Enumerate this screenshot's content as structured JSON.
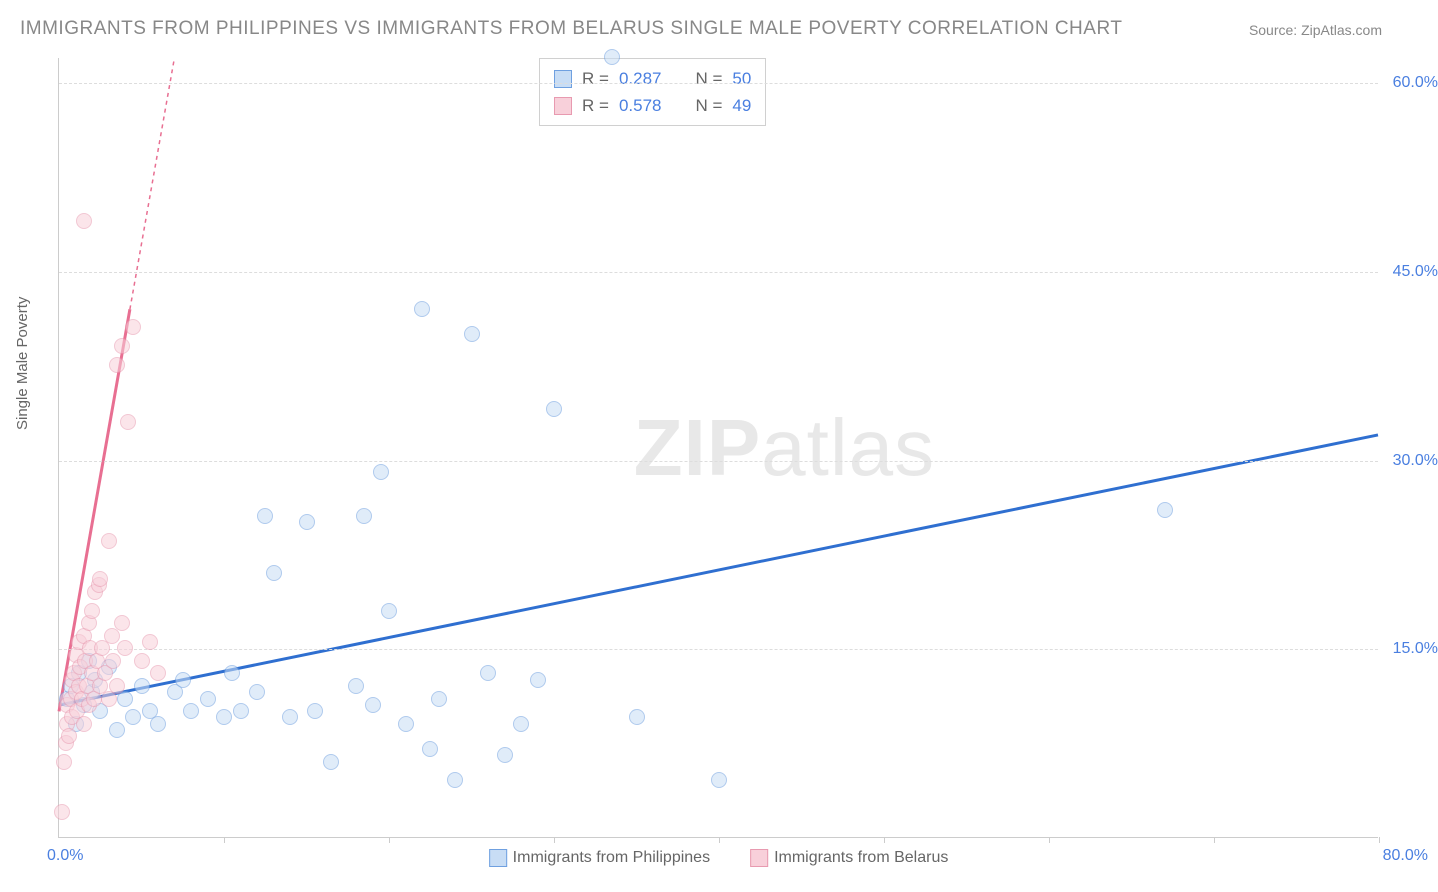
{
  "title": "IMMIGRANTS FROM PHILIPPINES VS IMMIGRANTS FROM BELARUS SINGLE MALE POVERTY CORRELATION CHART",
  "source": "Source: ZipAtlas.com",
  "watermark_a": "ZIP",
  "watermark_b": "atlas",
  "chart": {
    "type": "scatter",
    "ylabel": "Single Male Poverty",
    "xlim": [
      0,
      80
    ],
    "ylim": [
      0,
      62
    ],
    "x_origin_label": "0.0%",
    "x_max_label": "80.0%",
    "y_ticks": [
      15,
      30,
      45,
      60
    ],
    "y_tick_labels": [
      "15.0%",
      "30.0%",
      "45.0%",
      "60.0%"
    ],
    "x_minor_ticks": [
      10,
      20,
      30,
      40,
      50,
      60,
      70,
      80
    ],
    "background_color": "#ffffff",
    "grid_color": "#dddddd",
    "axis_color": "#cccccc",
    "tick_label_color": "#4a7fe0",
    "label_fontsize": 15,
    "title_fontsize": 19,
    "title_color": "#888888",
    "marker_size": 16,
    "series": [
      {
        "name": "Immigrants from Philippines",
        "color_fill": "#c8ddf5",
        "color_stroke": "#6fa0e0",
        "trend_color": "#2f6fd0",
        "trend_width": 3,
        "trend_dash": "none",
        "trend_p1": [
          0,
          10.5
        ],
        "trend_p2": [
          80,
          32
        ],
        "R": "0.287",
        "N": "50",
        "points": [
          [
            0.5,
            11
          ],
          [
            0.7,
            12
          ],
          [
            1,
            9
          ],
          [
            1.2,
            13
          ],
          [
            1.5,
            10.5
          ],
          [
            1.8,
            14
          ],
          [
            2,
            11.5
          ],
          [
            2.2,
            12.5
          ],
          [
            2.5,
            10
          ],
          [
            3,
            13.5
          ],
          [
            3.5,
            8.5
          ],
          [
            4,
            11
          ],
          [
            4.5,
            9.5
          ],
          [
            5,
            12
          ],
          [
            5.5,
            10
          ],
          [
            6,
            9
          ],
          [
            7,
            11.5
          ],
          [
            7.5,
            12.5
          ],
          [
            8,
            10
          ],
          [
            9,
            11
          ],
          [
            10,
            9.5
          ],
          [
            10.5,
            13
          ],
          [
            11,
            10
          ],
          [
            12,
            11.5
          ],
          [
            12.5,
            25.5
          ],
          [
            13,
            21
          ],
          [
            14,
            9.5
          ],
          [
            15,
            25
          ],
          [
            15.5,
            10
          ],
          [
            16.5,
            6
          ],
          [
            18,
            12
          ],
          [
            18.5,
            25.5
          ],
          [
            19,
            10.5
          ],
          [
            19.5,
            29
          ],
          [
            20,
            18
          ],
          [
            21,
            9
          ],
          [
            22,
            42
          ],
          [
            22.5,
            7
          ],
          [
            23,
            11
          ],
          [
            24,
            4.5
          ],
          [
            25,
            40
          ],
          [
            26,
            13
          ],
          [
            27,
            6.5
          ],
          [
            28,
            9
          ],
          [
            29,
            12.5
          ],
          [
            30,
            34
          ],
          [
            33.5,
            62
          ],
          [
            35,
            9.5
          ],
          [
            40,
            4.5
          ],
          [
            67,
            26
          ]
        ]
      },
      {
        "name": "Immigrants from Belarus",
        "color_fill": "#f8d0da",
        "color_stroke": "#e89ab0",
        "trend_color": "#e86f92",
        "trend_width": 3,
        "trend_dash": "4,4",
        "trend_p1": [
          0,
          10
        ],
        "trend_p2": [
          7,
          62
        ],
        "trend_solid_end": [
          4.3,
          42
        ],
        "R": "0.578",
        "N": "49",
        "points": [
          [
            0.2,
            2
          ],
          [
            0.3,
            6
          ],
          [
            0.4,
            7.5
          ],
          [
            0.5,
            9
          ],
          [
            0.5,
            10.5
          ],
          [
            0.6,
            8
          ],
          [
            0.7,
            11
          ],
          [
            0.8,
            12.5
          ],
          [
            0.8,
            9.5
          ],
          [
            0.9,
            13
          ],
          [
            1,
            11.5
          ],
          [
            1,
            14.5
          ],
          [
            1.1,
            10
          ],
          [
            1.2,
            12
          ],
          [
            1.2,
            15.5
          ],
          [
            1.3,
            13.5
          ],
          [
            1.4,
            11
          ],
          [
            1.5,
            16
          ],
          [
            1.5,
            9
          ],
          [
            1.6,
            14
          ],
          [
            1.7,
            12
          ],
          [
            1.8,
            17
          ],
          [
            1.8,
            10.5
          ],
          [
            1.9,
            15
          ],
          [
            2,
            13
          ],
          [
            2,
            18
          ],
          [
            2.1,
            11
          ],
          [
            2.2,
            19.5
          ],
          [
            2.3,
            14
          ],
          [
            2.4,
            20
          ],
          [
            2.5,
            12
          ],
          [
            2.5,
            20.5
          ],
          [
            2.6,
            15
          ],
          [
            2.8,
            13
          ],
          [
            3,
            23.5
          ],
          [
            3,
            11
          ],
          [
            3.2,
            16
          ],
          [
            3.3,
            14
          ],
          [
            3.5,
            37.5
          ],
          [
            3.5,
            12
          ],
          [
            3.8,
            39
          ],
          [
            3.8,
            17
          ],
          [
            4,
            15
          ],
          [
            4.2,
            33
          ],
          [
            4.5,
            40.5
          ],
          [
            1.5,
            49
          ],
          [
            5,
            14
          ],
          [
            5.5,
            15.5
          ],
          [
            6,
            13
          ]
        ]
      }
    ],
    "legend_top": {
      "R_label": "R =",
      "N_label": "N ="
    },
    "legend_bottom_labels": [
      "Immigrants from Philippines",
      "Immigrants from Belarus"
    ]
  }
}
